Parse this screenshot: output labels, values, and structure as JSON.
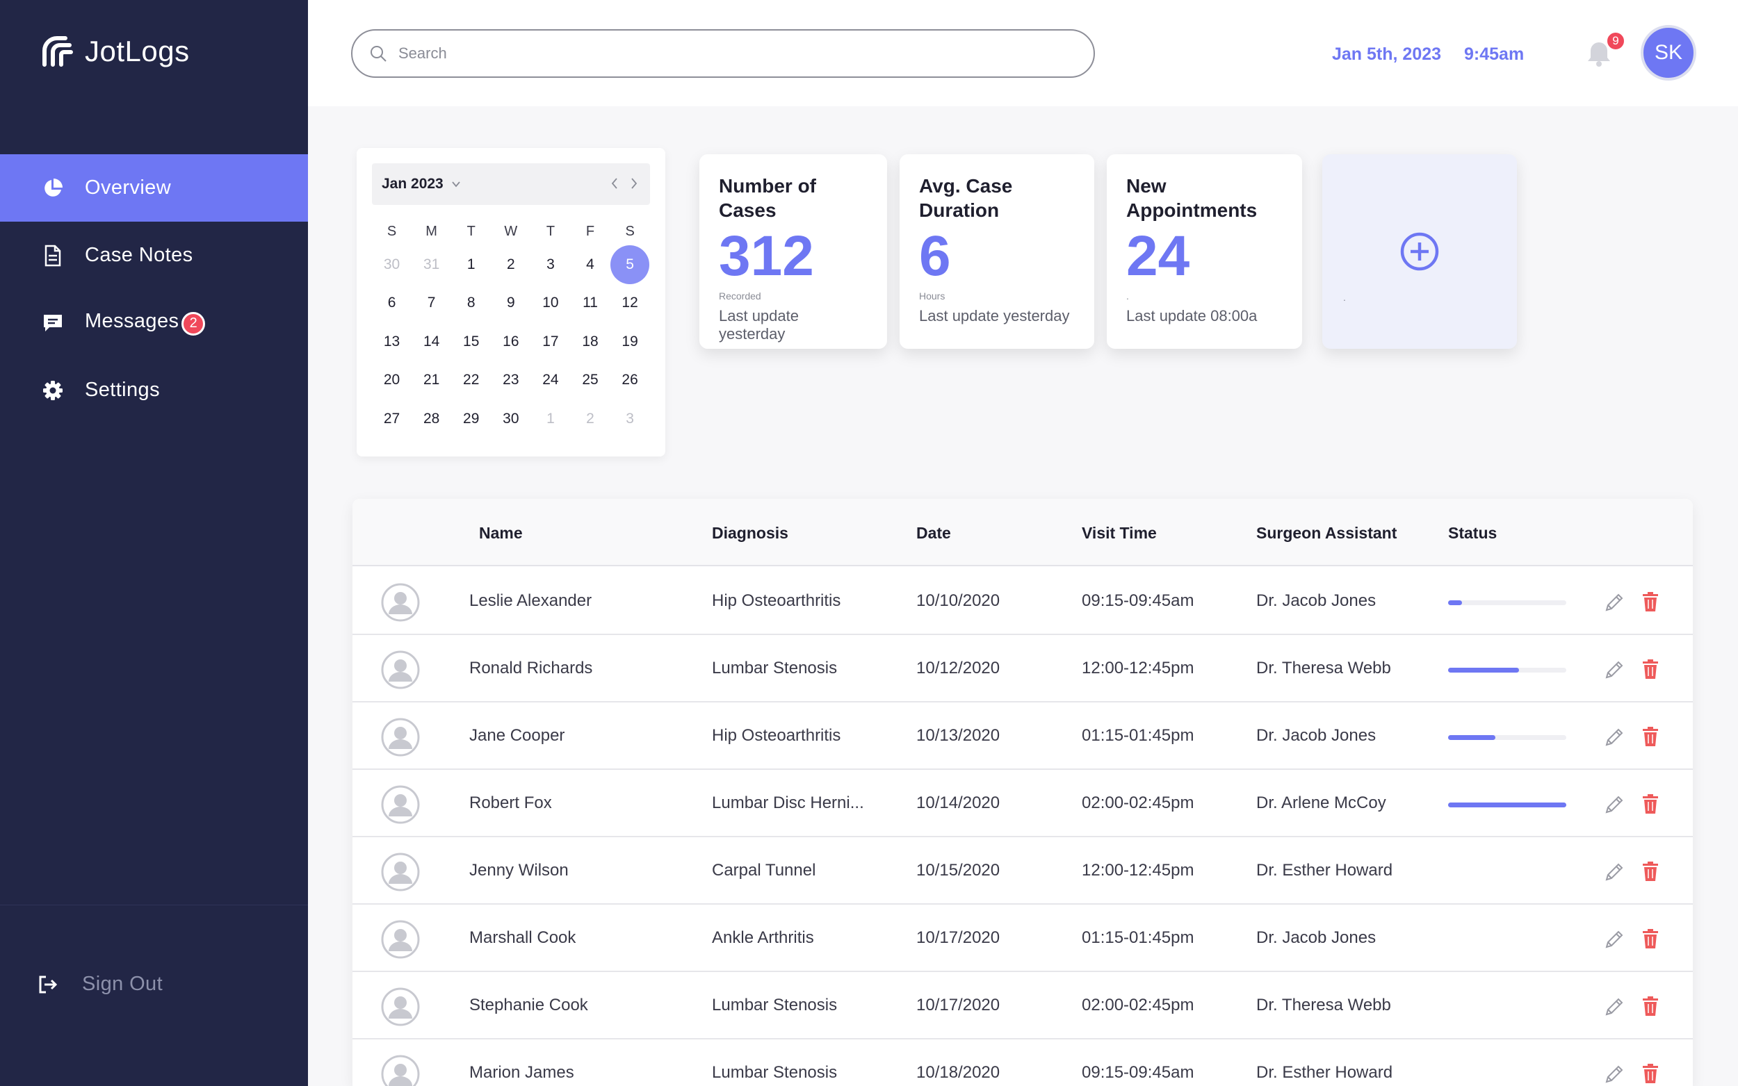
{
  "app": {
    "name": "JotLogs"
  },
  "colors": {
    "sidebar": "#222646",
    "accent": "#6e77f3",
    "badge": "#f0485a",
    "delete": "#ee5a5a"
  },
  "sidebar": {
    "items": [
      {
        "label": "Overview",
        "icon": "pie-chart-icon",
        "active": true
      },
      {
        "label": "Case Notes",
        "icon": "document-icon"
      },
      {
        "label": "Messages",
        "icon": "message-icon",
        "badge": "2"
      },
      {
        "label": "Settings",
        "icon": "gear-icon"
      }
    ],
    "signout": "Sign Out"
  },
  "header": {
    "search_placeholder": "Search",
    "date": "Jan 5th, 2023",
    "time": "9:45am",
    "notifications": "9",
    "user_initials": "SK"
  },
  "calendar": {
    "month": "Jan 2023",
    "weekdays": [
      "S",
      "M",
      "T",
      "W",
      "T",
      "F",
      "S"
    ],
    "weeks": [
      [
        "30",
        "31",
        "1",
        "2",
        "3",
        "4",
        "5"
      ],
      [
        "6",
        "7",
        "8",
        "9",
        "10",
        "11",
        "12"
      ],
      [
        "13",
        "14",
        "15",
        "16",
        "17",
        "18",
        "19"
      ],
      [
        "20",
        "21",
        "22",
        "23",
        "24",
        "25",
        "26"
      ],
      [
        "27",
        "28",
        "29",
        "30",
        "1",
        "2",
        "3"
      ]
    ],
    "selected": "5"
  },
  "stats": [
    {
      "title": "Number of Cases",
      "value": "312",
      "sub": "Recorded",
      "update": "Last update yesterday"
    },
    {
      "title": "Avg. Case Duration",
      "value": "6",
      "sub": "Hours",
      "update": "Last update yesterday"
    },
    {
      "title": "New Appointments",
      "value": "24",
      "sub": ".",
      "update": "Last update 08:00a"
    }
  ],
  "add_card": {
    "dot": "."
  },
  "table": {
    "headers": {
      "name": "Name",
      "diagnosis": "Diagnosis",
      "date": "Date",
      "visit_time": "Visit Time",
      "assistant": "Surgeon Assistant",
      "status": "Status"
    },
    "rows": [
      {
        "name": "Leslie Alexander",
        "diagnosis": "Hip Osteoarthritis",
        "date": "10/10/2020",
        "visit_time": "09:15-09:45am",
        "assistant": "Dr. Jacob Jones",
        "progress": 0.12
      },
      {
        "name": "Ronald Richards",
        "diagnosis": "Lumbar Stenosis",
        "date": "10/12/2020",
        "visit_time": "12:00-12:45pm",
        "assistant": "Dr. Theresa Webb",
        "progress": 0.6
      },
      {
        "name": "Jane Cooper",
        "diagnosis": "Hip Osteoarthritis",
        "date": "10/13/2020",
        "visit_time": "01:15-01:45pm",
        "assistant": "Dr. Jacob Jones",
        "progress": 0.4
      },
      {
        "name": "Robert Fox",
        "diagnosis": "Lumbar Disc Herni...",
        "date": "10/14/2020",
        "visit_time": "02:00-02:45pm",
        "assistant": "Dr. Arlene McCoy",
        "progress": 1.0
      },
      {
        "name": "Jenny Wilson",
        "diagnosis": "Carpal Tunnel",
        "date": "10/15/2020",
        "visit_time": "12:00-12:45pm",
        "assistant": "Dr. Esther Howard",
        "progress": null
      },
      {
        "name": "Marshall Cook",
        "diagnosis": "Ankle Arthritis",
        "date": "10/17/2020",
        "visit_time": "01:15-01:45pm",
        "assistant": "Dr. Jacob Jones",
        "progress": null
      },
      {
        "name": "Stephanie Cook",
        "diagnosis": "Lumbar Stenosis",
        "date": "10/17/2020",
        "visit_time": "02:00-02:45pm",
        "assistant": "Dr. Theresa Webb",
        "progress": null
      },
      {
        "name": "Marion James",
        "diagnosis": "Lumbar Stenosis",
        "date": "10/18/2020",
        "visit_time": "09:15-09:45am",
        "assistant": "Dr. Esther Howard",
        "progress": null
      }
    ]
  }
}
